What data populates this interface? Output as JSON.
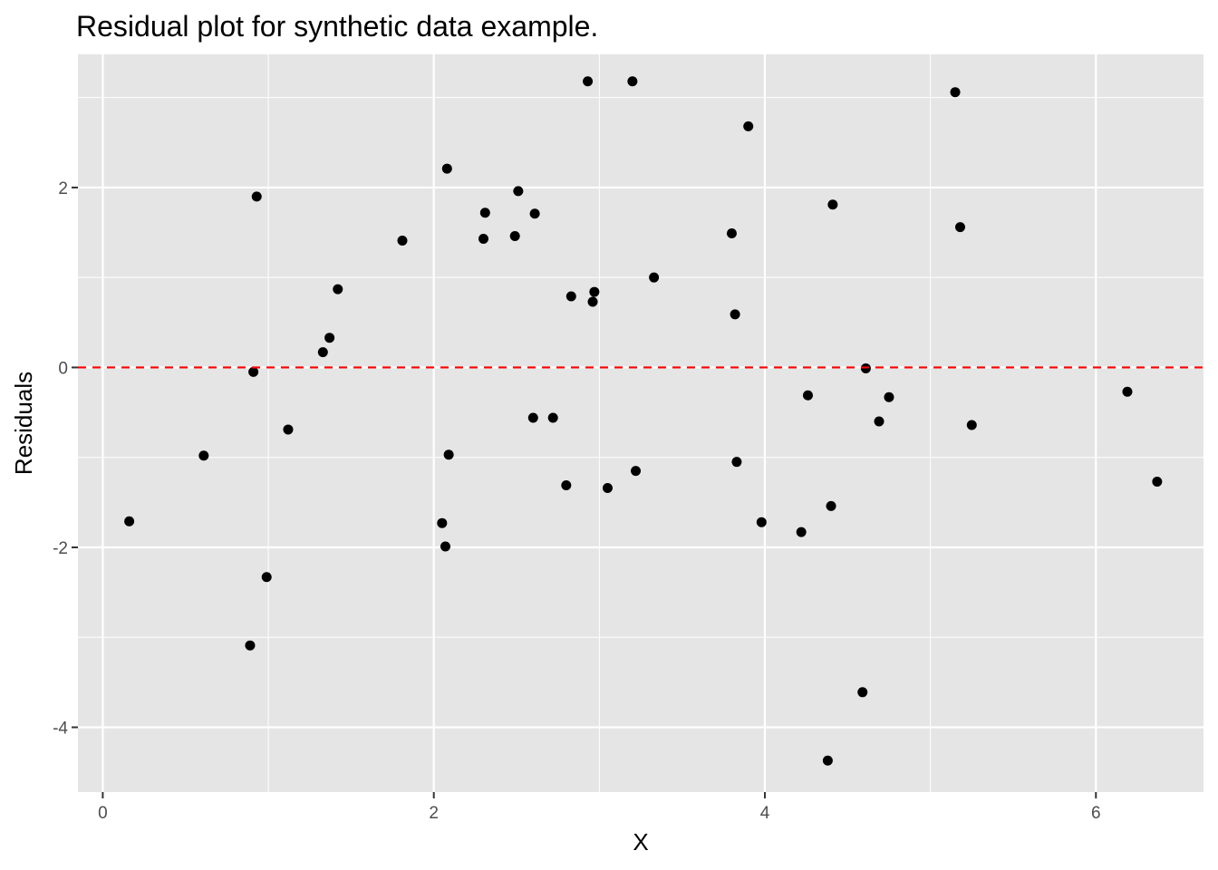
{
  "chart_data": {
    "type": "scatter",
    "title": "Residual plot for synthetic data example.",
    "xlabel": "X",
    "ylabel": "Residuals",
    "xlim": [
      -0.15,
      6.65
    ],
    "ylim": [
      -4.72,
      3.48
    ],
    "x_ticks": [
      0,
      2,
      4,
      6
    ],
    "y_ticks": [
      -4,
      -2,
      0,
      2
    ],
    "x_tick_labels": [
      "0",
      "2",
      "4",
      "6"
    ],
    "y_tick_labels": [
      "-4",
      "-2",
      "0",
      "2"
    ],
    "grid": true,
    "reference_line": {
      "y": 0,
      "style": "dashed",
      "color": "#ff0000"
    },
    "colors": {
      "panel": "#e5e5e5",
      "grid": "#ffffff",
      "point": "#000000",
      "tick_text": "#4d4d4d"
    },
    "points": [
      {
        "x": 0.16,
        "y": -1.71
      },
      {
        "x": 0.61,
        "y": -0.98
      },
      {
        "x": 0.89,
        "y": -3.09
      },
      {
        "x": 0.91,
        "y": -0.05
      },
      {
        "x": 0.93,
        "y": 1.9
      },
      {
        "x": 0.99,
        "y": -2.33
      },
      {
        "x": 1.12,
        "y": -0.69
      },
      {
        "x": 1.33,
        "y": 0.17
      },
      {
        "x": 1.37,
        "y": 0.33
      },
      {
        "x": 1.42,
        "y": 0.87
      },
      {
        "x": 1.81,
        "y": 1.41
      },
      {
        "x": 2.05,
        "y": -1.73
      },
      {
        "x": 2.07,
        "y": -1.99
      },
      {
        "x": 2.08,
        "y": 2.21
      },
      {
        "x": 2.09,
        "y": -0.97
      },
      {
        "x": 2.3,
        "y": 1.43
      },
      {
        "x": 2.31,
        "y": 1.72
      },
      {
        "x": 2.49,
        "y": 1.46
      },
      {
        "x": 2.51,
        "y": 1.96
      },
      {
        "x": 2.6,
        "y": -0.56
      },
      {
        "x": 2.61,
        "y": 1.71
      },
      {
        "x": 2.72,
        "y": -0.56
      },
      {
        "x": 2.8,
        "y": -1.31
      },
      {
        "x": 2.83,
        "y": 0.79
      },
      {
        "x": 2.93,
        "y": 3.18
      },
      {
        "x": 2.96,
        "y": 0.73
      },
      {
        "x": 2.97,
        "y": 0.84
      },
      {
        "x": 3.05,
        "y": -1.34
      },
      {
        "x": 3.2,
        "y": 3.18
      },
      {
        "x": 3.22,
        "y": -1.15
      },
      {
        "x": 3.33,
        "y": 1.0
      },
      {
        "x": 3.8,
        "y": 1.49
      },
      {
        "x": 3.82,
        "y": 0.59
      },
      {
        "x": 3.83,
        "y": -1.05
      },
      {
        "x": 3.9,
        "y": 2.68
      },
      {
        "x": 3.98,
        "y": -1.72
      },
      {
        "x": 4.22,
        "y": -1.83
      },
      {
        "x": 4.26,
        "y": -0.31
      },
      {
        "x": 4.38,
        "y": -4.37
      },
      {
        "x": 4.4,
        "y": -1.54
      },
      {
        "x": 4.41,
        "y": 1.81
      },
      {
        "x": 4.59,
        "y": -3.61
      },
      {
        "x": 4.61,
        "y": -0.01
      },
      {
        "x": 4.69,
        "y": -0.6
      },
      {
        "x": 4.75,
        "y": -0.33
      },
      {
        "x": 5.15,
        "y": 3.06
      },
      {
        "x": 5.18,
        "y": 1.56
      },
      {
        "x": 5.25,
        "y": -0.64
      },
      {
        "x": 6.19,
        "y": -0.27
      },
      {
        "x": 6.37,
        "y": -1.27
      }
    ]
  }
}
